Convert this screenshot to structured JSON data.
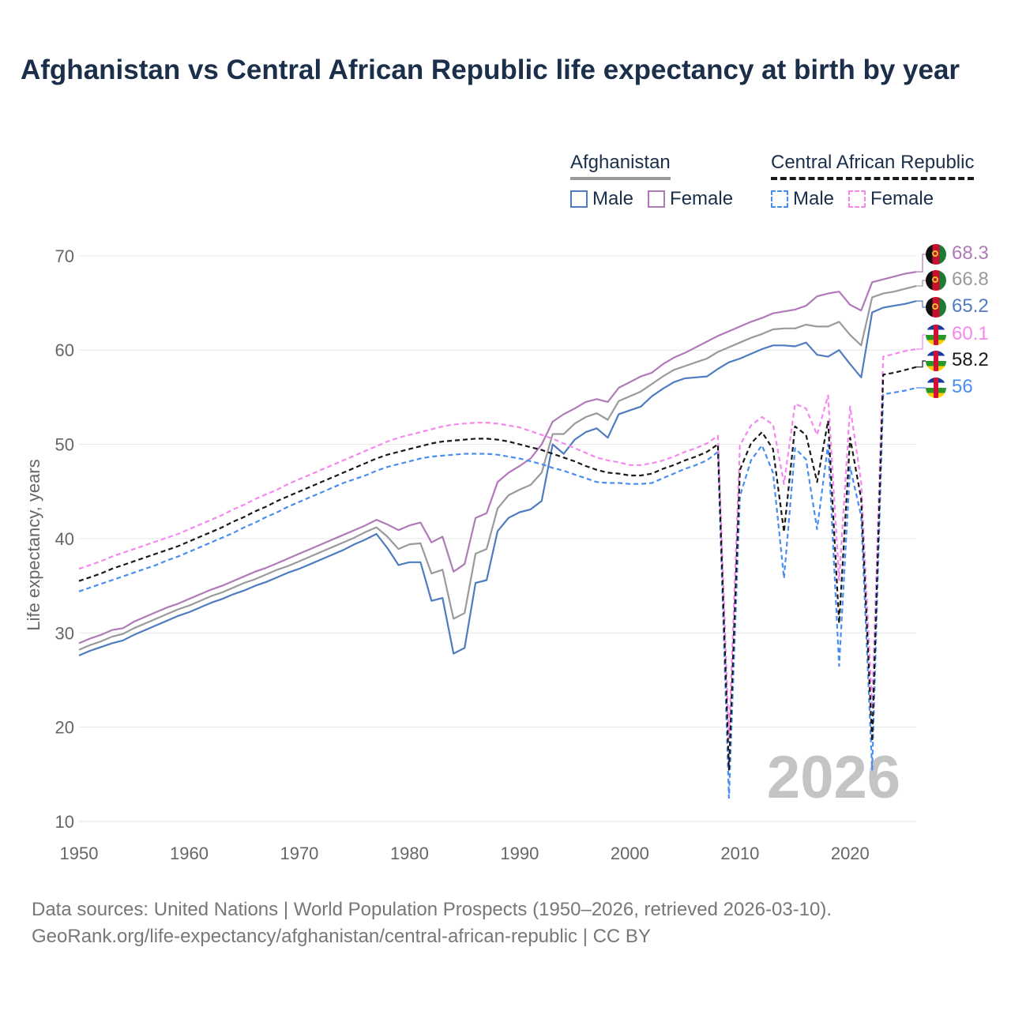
{
  "title": "Afghanistan vs Central African Republic life expectancy at birth by year",
  "legend": {
    "groups": [
      {
        "name": "Afghanistan",
        "color": "#9a9a9a",
        "dash": false,
        "items": [
          {
            "label": "Male",
            "color": "#4f7cc0"
          },
          {
            "label": "Female",
            "color": "#b07ab8"
          }
        ]
      },
      {
        "name": "Central African Republic",
        "color": "#1a1a1a",
        "dash": true,
        "items": [
          {
            "label": "Male",
            "color": "#4a8df0"
          },
          {
            "label": "Female",
            "color": "#f587ee"
          }
        ]
      }
    ]
  },
  "year_label": "2026",
  "footer": {
    "line1": "Data sources: United Nations | World Population Prospects (1950–2026, retrieved 2026-03-10).",
    "line2": "GeoRank.org/life-expectancy/afghanistan/central-african-republic | CC BY"
  },
  "end_labels": [
    {
      "text": "68.3",
      "color": "#b07ab8",
      "flag": "af"
    },
    {
      "text": "66.8",
      "color": "#9a9a9a",
      "flag": "af"
    },
    {
      "text": "65.2",
      "color": "#4f7cc0",
      "flag": "af"
    },
    {
      "text": "60.1",
      "color": "#f587ee",
      "flag": "car"
    },
    {
      "text": "58.2",
      "color": "#1a1a1a",
      "flag": "car"
    },
    {
      "text": "56",
      "color": "#4a8df0",
      "flag": "car"
    }
  ],
  "chart_data": {
    "type": "line",
    "title": "Afghanistan vs Central African Republic life expectancy at birth by year",
    "xlabel": "",
    "ylabel": "Life expectancy, years",
    "xlim": [
      1950,
      2026
    ],
    "ylim": [
      10,
      72
    ],
    "xticks": [
      1950,
      1960,
      1970,
      1980,
      1990,
      2000,
      2010,
      2020
    ],
    "yticks": [
      10,
      20,
      30,
      40,
      50,
      60,
      70
    ],
    "grid": true,
    "x": [
      1950,
      1951,
      1952,
      1953,
      1954,
      1955,
      1956,
      1957,
      1958,
      1959,
      1960,
      1961,
      1962,
      1963,
      1964,
      1965,
      1966,
      1967,
      1968,
      1969,
      1970,
      1971,
      1972,
      1973,
      1974,
      1975,
      1976,
      1977,
      1978,
      1979,
      1980,
      1981,
      1982,
      1983,
      1984,
      1985,
      1986,
      1987,
      1988,
      1989,
      1990,
      1991,
      1992,
      1993,
      1994,
      1995,
      1996,
      1997,
      1998,
      1999,
      2000,
      2001,
      2002,
      2003,
      2004,
      2005,
      2006,
      2007,
      2008,
      2009,
      2010,
      2011,
      2012,
      2013,
      2014,
      2015,
      2016,
      2017,
      2018,
      2019,
      2020,
      2021,
      2022,
      2023,
      2024,
      2025,
      2026
    ],
    "series": [
      {
        "name": "Afghanistan Male",
        "country": "Afghanistan",
        "sex": "Male",
        "color": "#4f7cc0",
        "dash": false,
        "values": [
          27.6,
          28.1,
          28.5,
          28.9,
          29.2,
          29.8,
          30.3,
          30.8,
          31.3,
          31.8,
          32.2,
          32.7,
          33.2,
          33.6,
          34.1,
          34.5,
          35.0,
          35.4,
          35.9,
          36.4,
          36.8,
          37.3,
          37.8,
          38.3,
          38.8,
          39.4,
          39.9,
          40.5,
          39.0,
          37.2,
          37.5,
          37.5,
          33.4,
          33.7,
          27.8,
          28.4,
          35.3,
          35.6,
          40.8,
          42.2,
          42.8,
          43.1,
          44.0,
          50.0,
          49.0,
          50.5,
          51.3,
          51.7,
          50.7,
          53.2,
          53.6,
          54.0,
          55.1,
          55.9,
          56.6,
          57.0,
          57.1,
          57.2,
          58.0,
          58.7,
          59.1,
          59.6,
          60.1,
          60.5,
          60.5,
          60.4,
          60.8,
          59.5,
          59.3,
          60.0,
          58.5,
          57.1,
          64.0,
          64.5,
          64.7,
          64.9,
          65.2
        ]
      },
      {
        "name": "Afghanistan Female",
        "country": "Afghanistan",
        "sex": "Female",
        "color": "#b07ab8",
        "dash": false,
        "values": [
          28.9,
          29.4,
          29.8,
          30.3,
          30.5,
          31.2,
          31.7,
          32.2,
          32.7,
          33.1,
          33.6,
          34.1,
          34.6,
          35.0,
          35.5,
          36.0,
          36.5,
          36.9,
          37.4,
          37.9,
          38.4,
          38.9,
          39.4,
          39.9,
          40.4,
          40.9,
          41.4,
          42.0,
          41.5,
          40.9,
          41.4,
          41.7,
          39.6,
          40.2,
          36.5,
          37.3,
          42.2,
          42.7,
          46.0,
          47.0,
          47.7,
          48.5,
          50.0,
          52.4,
          53.2,
          53.8,
          54.5,
          54.8,
          54.5,
          56.0,
          56.6,
          57.2,
          57.6,
          58.5,
          59.2,
          59.7,
          60.3,
          60.9,
          61.5,
          62.0,
          62.5,
          63.0,
          63.4,
          63.9,
          64.1,
          64.3,
          64.7,
          65.7,
          66.0,
          66.2,
          64.8,
          64.2,
          67.2,
          67.5,
          67.8,
          68.1,
          68.3
        ]
      },
      {
        "name": "Afghanistan Both",
        "country": "Afghanistan",
        "sex": "Both",
        "color": "#9a9a9a",
        "dash": false,
        "values": [
          28.2,
          28.7,
          29.1,
          29.6,
          29.9,
          30.5,
          31.0,
          31.5,
          32.0,
          32.5,
          32.9,
          33.4,
          33.9,
          34.3,
          34.8,
          35.3,
          35.7,
          36.2,
          36.7,
          37.1,
          37.6,
          38.1,
          38.6,
          39.1,
          39.6,
          40.1,
          40.7,
          41.2,
          40.2,
          38.9,
          39.4,
          39.5,
          36.3,
          36.7,
          31.5,
          32.1,
          38.4,
          38.9,
          43.2,
          44.6,
          45.2,
          45.7,
          47.0,
          51.1,
          51.1,
          52.2,
          52.9,
          53.3,
          52.6,
          54.6,
          55.1,
          55.6,
          56.4,
          57.2,
          57.9,
          58.3,
          58.7,
          59.1,
          59.8,
          60.3,
          60.8,
          61.3,
          61.7,
          62.2,
          62.3,
          62.3,
          62.7,
          62.5,
          62.5,
          63.0,
          61.6,
          60.5,
          65.6,
          66.0,
          66.2,
          66.5,
          66.8
        ]
      },
      {
        "name": "Central African Republic Male",
        "country": "Central African Republic",
        "sex": "Male",
        "color": "#4a8df0",
        "dash": true,
        "values": [
          34.4,
          34.8,
          35.2,
          35.6,
          36.0,
          36.4,
          36.8,
          37.2,
          37.7,
          38.1,
          38.6,
          39.1,
          39.6,
          40.1,
          40.6,
          41.2,
          41.7,
          42.3,
          42.8,
          43.4,
          43.9,
          44.4,
          44.9,
          45.4,
          45.9,
          46.3,
          46.7,
          47.2,
          47.6,
          47.9,
          48.2,
          48.5,
          48.7,
          48.8,
          48.9,
          49.0,
          49.0,
          49.0,
          48.9,
          48.7,
          48.5,
          48.2,
          47.9,
          47.5,
          47.2,
          46.8,
          46.4,
          46.0,
          45.9,
          45.9,
          45.8,
          45.8,
          45.9,
          46.4,
          46.9,
          47.4,
          47.8,
          48.3,
          49.2,
          12.5,
          44.5,
          48.3,
          49.9,
          47.0,
          35.8,
          49.6,
          48.4,
          41.0,
          50.0,
          26.5,
          47.6,
          42.4,
          15.5,
          55.3,
          55.5,
          55.7,
          56.0
        ]
      },
      {
        "name": "Central African Republic Female",
        "country": "Central African Republic",
        "sex": "Female",
        "color": "#f587ee",
        "dash": true,
        "values": [
          36.8,
          37.2,
          37.6,
          38.1,
          38.5,
          38.9,
          39.3,
          39.7,
          40.1,
          40.5,
          41.0,
          41.5,
          42.0,
          42.5,
          43.1,
          43.6,
          44.2,
          44.7,
          45.2,
          45.8,
          46.3,
          46.8,
          47.3,
          47.8,
          48.3,
          48.8,
          49.3,
          49.8,
          50.3,
          50.7,
          51.0,
          51.3,
          51.6,
          51.9,
          52.1,
          52.2,
          52.3,
          52.3,
          52.2,
          52.0,
          51.8,
          51.4,
          51.0,
          50.6,
          50.1,
          49.6,
          49.1,
          48.6,
          48.3,
          48.1,
          47.8,
          47.8,
          48.0,
          48.3,
          48.7,
          49.2,
          49.6,
          50.1,
          50.9,
          18.8,
          49.9,
          52.0,
          52.9,
          52.1,
          45.8,
          54.3,
          53.8,
          51.0,
          55.2,
          35.6,
          54.0,
          46.0,
          22.0,
          59.3,
          59.6,
          59.9,
          60.1
        ]
      },
      {
        "name": "Central African Republic Both",
        "country": "Central African Republic",
        "sex": "Both",
        "color": "#1a1a1a",
        "dash": true,
        "values": [
          35.5,
          35.9,
          36.3,
          36.8,
          37.2,
          37.6,
          38.0,
          38.4,
          38.8,
          39.2,
          39.7,
          40.2,
          40.7,
          41.2,
          41.8,
          42.3,
          42.9,
          43.4,
          44.0,
          44.5,
          45.0,
          45.5,
          46.0,
          46.5,
          47.0,
          47.5,
          48.0,
          48.5,
          48.9,
          49.2,
          49.5,
          49.8,
          50.1,
          50.3,
          50.4,
          50.5,
          50.6,
          50.6,
          50.5,
          50.3,
          50.0,
          49.7,
          49.4,
          49.0,
          48.6,
          48.2,
          47.7,
          47.3,
          47.0,
          46.9,
          46.7,
          46.7,
          46.9,
          47.4,
          47.8,
          48.3,
          48.7,
          49.2,
          50.0,
          15.5,
          47.3,
          50.1,
          51.3,
          49.5,
          40.7,
          51.9,
          51.0,
          46.0,
          52.5,
          31.0,
          50.7,
          44.2,
          18.5,
          57.4,
          57.6,
          57.9,
          58.2
        ]
      }
    ]
  }
}
